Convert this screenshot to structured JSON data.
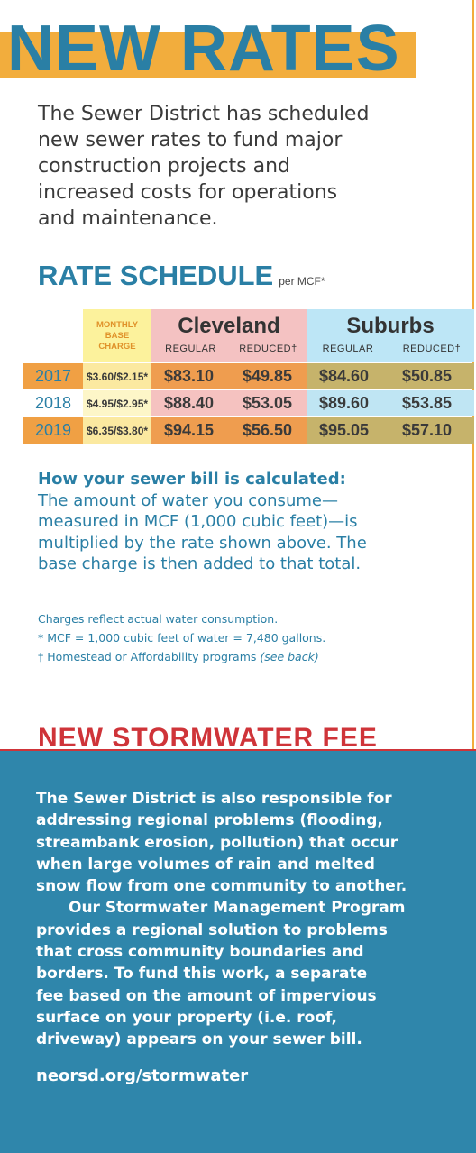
{
  "header": {
    "title": "NEW RATES",
    "intro": [
      "The Sewer District has scheduled",
      "new sewer rates to fund major",
      "construction projects and",
      "increased costs for operations",
      "and maintenance."
    ]
  },
  "rate_schedule": {
    "title": "RATE SCHEDULE",
    "unit": "per MCF*",
    "base_header": "MONTHLY BASE CHARGE",
    "groups": [
      "Cleveland",
      "Suburbs"
    ],
    "subheaders": [
      "REGULAR",
      "REDUCED†",
      "REGULAR",
      "REDUCED†"
    ],
    "rows": [
      [
        "2017",
        "$3.60/$2.15*",
        "$83.10",
        "$49.85",
        "$84.60",
        "$50.85"
      ],
      [
        "2018",
        "$4.95/$2.95*",
        "$88.40",
        "$53.05",
        "$89.60",
        "$53.85"
      ],
      [
        "2019",
        "$6.35/$3.80*",
        "$94.15",
        "$56.50",
        "$95.05",
        "$57.10"
      ]
    ]
  },
  "calculation": {
    "heading": "How your sewer bill is calculated:",
    "lines": [
      "The amount of water you consume—",
      "measured in MCF (1,000 cubic feet)—is",
      "multiplied by the rate shown above. The",
      "base charge is then added to that total."
    ]
  },
  "notes": {
    "line1": "Charges reflect actual water consumption.",
    "line2": "* MCF = 1,000 cubic feet of water = 7,480 gallons.",
    "line3": "† Homestead or Affordability programs",
    "line3_italic": "(see back)"
  },
  "stormwater": {
    "heading": "NEW STORMWATER FEE",
    "lines": [
      "The Sewer District is also responsible for",
      "addressing regional problems (flooding,",
      "streambank erosion, pollution) that occur",
      "when large volumes of rain and melted",
      "snow flow from one community to another.",
      "Our Stormwater Management Program",
      "provides a regional solution to problems",
      "that cross community boundaries and",
      "borders. To fund this work, a separate",
      "fee based on the amount of impervious",
      "surface on your property (i.e. roof,",
      "driveway) appears on your sewer bill."
    ],
    "link": "neorsd.org/stormwater"
  }
}
